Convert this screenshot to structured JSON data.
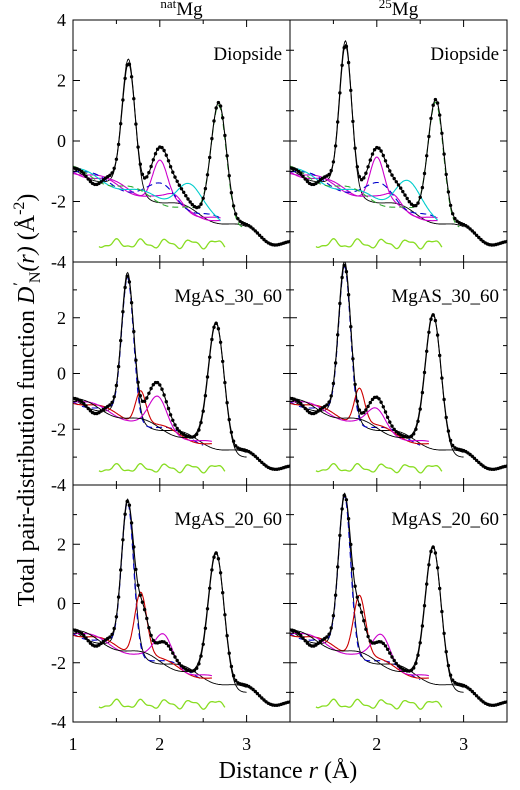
{
  "chart_data": {
    "type": "line",
    "ylabel": "Total pair-distribution function D′N(r) (Å⁻²)",
    "ylabel_main": "Total pair-distribution function ",
    "ylabel_D": "D",
    "ylabel_prime": "′",
    "ylabel_N": "N",
    "ylabel_r": "(r)",
    "ylabel_unit_open": " (Å",
    "ylabel_unit_exp": "-2",
    "ylabel_unit_close": ")",
    "xlabel": "Distance r (Å)",
    "xlabel_prefix": "Distance ",
    "xlabel_r": "r",
    "xlabel_unit": " (Å)",
    "xlim": [
      1,
      3.5
    ],
    "ylim": [
      -4,
      4
    ],
    "xticks": [
      1,
      2,
      3
    ],
    "yticks": [
      -4,
      -2,
      0,
      2,
      4
    ],
    "columns": [
      {
        "sup": "nat",
        "base": "Mg"
      },
      {
        "sup": "25",
        "base": "Mg"
      }
    ],
    "rows": [
      "Diopside",
      "MgAS_30_60",
      "MgAS_20_60"
    ],
    "panels": [
      {
        "col": 0,
        "row": 0,
        "label": "Diopside",
        "data_peaks": [
          {
            "c": 1.64,
            "a": 4.2,
            "s": 0.075
          },
          {
            "c": 2.0,
            "a": 1.6,
            "s": 0.1
          },
          {
            "c": 2.2,
            "a": 0.6,
            "s": 0.12
          },
          {
            "c": 2.68,
            "a": 3.9,
            "s": 0.09
          }
        ],
        "components": [
          {
            "color": "#000000",
            "dash": "",
            "c": 1.64,
            "a": 4.2,
            "s": 0.075,
            "to": 3.0
          },
          {
            "color": "#cc00cc",
            "dash": "",
            "c": 2.0,
            "a": 1.3,
            "s": 0.085,
            "to": 2.7
          },
          {
            "color": "#cc00cc",
            "dash": "",
            "c": 2.18,
            "a": 0.3,
            "s": 0.09,
            "to": 2.7
          },
          {
            "color": "#0000cc",
            "dash": "6,4",
            "c": 2.06,
            "a": 0.5,
            "s": 0.15,
            "to": 2.7
          },
          {
            "color": "#00cccc",
            "dash": "",
            "c": 2.32,
            "a": 0.9,
            "s": 0.14,
            "to": 2.7
          },
          {
            "color": "#33aa33",
            "dash": "6,4",
            "c": 2.68,
            "a": 3.9,
            "s": 0.09,
            "to": 2.95
          }
        ]
      },
      {
        "col": 1,
        "row": 0,
        "label": "Diopside",
        "data_peaks": [
          {
            "c": 1.64,
            "a": 4.8,
            "s": 0.07
          },
          {
            "c": 2.0,
            "a": 1.6,
            "s": 0.1
          },
          {
            "c": 2.22,
            "a": 0.7,
            "s": 0.12
          },
          {
            "c": 2.68,
            "a": 4.0,
            "s": 0.09
          }
        ],
        "components": [
          {
            "color": "#000000",
            "dash": "",
            "c": 1.64,
            "a": 4.8,
            "s": 0.07,
            "to": 3.0
          },
          {
            "color": "#cc00cc",
            "dash": "",
            "c": 2.0,
            "a": 1.4,
            "s": 0.08,
            "to": 2.7
          },
          {
            "color": "#cc00cc",
            "dash": "",
            "c": 2.2,
            "a": 0.35,
            "s": 0.09,
            "to": 2.7
          },
          {
            "color": "#0000cc",
            "dash": "6,4",
            "c": 2.08,
            "a": 0.55,
            "s": 0.15,
            "to": 2.7
          },
          {
            "color": "#00cccc",
            "dash": "",
            "c": 2.34,
            "a": 1.0,
            "s": 0.14,
            "to": 2.7
          },
          {
            "color": "#33aa33",
            "dash": "6,4",
            "c": 2.68,
            "a": 4.0,
            "s": 0.09,
            "to": 2.95
          }
        ]
      },
      {
        "col": 0,
        "row": 1,
        "label": "MgAS_30_60",
        "data_peaks": [
          {
            "c": 1.63,
            "a": 5.1,
            "s": 0.07
          },
          {
            "c": 1.97,
            "a": 1.6,
            "s": 0.11
          },
          {
            "c": 2.65,
            "a": 4.4,
            "s": 0.09
          }
        ],
        "components": [
          {
            "color": "#000000",
            "dash": "",
            "c": 1.63,
            "a": 5.1,
            "s": 0.07,
            "to": 3.0
          },
          {
            "color": "#0000cc",
            "dash": "6,4",
            "c": 1.63,
            "a": 5.0,
            "s": 0.068,
            "to": 2.5
          },
          {
            "color": "#cc0000",
            "dash": "",
            "c": 1.78,
            "a": 1.2,
            "s": 0.06,
            "to": 2.6
          },
          {
            "color": "#cc00cc",
            "dash": "",
            "c": 1.98,
            "a": 1.0,
            "s": 0.1,
            "to": 2.6
          },
          {
            "color": "#000000",
            "dash": "",
            "c": 2.65,
            "a": 4.4,
            "s": 0.09,
            "to": 3.0
          }
        ]
      },
      {
        "col": 1,
        "row": 1,
        "label": "MgAS_30_60",
        "data_peaks": [
          {
            "c": 1.63,
            "a": 5.5,
            "s": 0.07
          },
          {
            "c": 2.0,
            "a": 1.1,
            "s": 0.1
          },
          {
            "c": 2.65,
            "a": 4.7,
            "s": 0.09
          }
        ],
        "components": [
          {
            "color": "#000000",
            "dash": "",
            "c": 1.63,
            "a": 5.5,
            "s": 0.07,
            "to": 3.0
          },
          {
            "color": "#0000cc",
            "dash": "6,4",
            "c": 1.63,
            "a": 5.4,
            "s": 0.068,
            "to": 2.5
          },
          {
            "color": "#cc0000",
            "dash": "",
            "c": 1.8,
            "a": 1.3,
            "s": 0.06,
            "to": 2.6
          },
          {
            "color": "#cc00cc",
            "dash": "",
            "c": 2.0,
            "a": 0.6,
            "s": 0.1,
            "to": 2.6
          },
          {
            "color": "#000000",
            "dash": "",
            "c": 2.65,
            "a": 4.7,
            "s": 0.09,
            "to": 3.0
          }
        ]
      },
      {
        "col": 0,
        "row": 2,
        "label": "MgAS_20_60",
        "data_peaks": [
          {
            "c": 1.63,
            "a": 5.0,
            "s": 0.07
          },
          {
            "c": 1.8,
            "a": 1.5,
            "s": 0.07
          },
          {
            "c": 2.05,
            "a": 0.7,
            "s": 0.1
          },
          {
            "c": 2.65,
            "a": 4.3,
            "s": 0.09
          }
        ],
        "components": [
          {
            "color": "#000000",
            "dash": "",
            "c": 1.63,
            "a": 5.0,
            "s": 0.07,
            "to": 3.0
          },
          {
            "color": "#0000cc",
            "dash": "6,4",
            "c": 1.63,
            "a": 5.0,
            "s": 0.068,
            "to": 2.5
          },
          {
            "color": "#cc0000",
            "dash": "",
            "c": 1.78,
            "a": 2.2,
            "s": 0.07,
            "to": 2.6
          },
          {
            "color": "#cc00cc",
            "dash": "",
            "c": 2.05,
            "a": 0.9,
            "s": 0.1,
            "to": 2.6
          },
          {
            "color": "#000000",
            "dash": "",
            "c": 2.65,
            "a": 4.3,
            "s": 0.09,
            "to": 3.0
          }
        ]
      },
      {
        "col": 1,
        "row": 2,
        "label": "MgAS_20_60",
        "data_peaks": [
          {
            "c": 1.63,
            "a": 5.2,
            "s": 0.07
          },
          {
            "c": 1.8,
            "a": 1.4,
            "s": 0.07
          },
          {
            "c": 2.05,
            "a": 0.7,
            "s": 0.1
          },
          {
            "c": 2.65,
            "a": 4.5,
            "s": 0.09
          }
        ],
        "components": [
          {
            "color": "#000000",
            "dash": "",
            "c": 1.63,
            "a": 5.2,
            "s": 0.07,
            "to": 3.0
          },
          {
            "color": "#0000cc",
            "dash": "6,4",
            "c": 1.63,
            "a": 5.2,
            "s": 0.068,
            "to": 2.5
          },
          {
            "color": "#cc0000",
            "dash": "",
            "c": 1.8,
            "a": 2.1,
            "s": 0.07,
            "to": 2.6
          },
          {
            "color": "#cc00cc",
            "dash": "",
            "c": 2.06,
            "a": 0.9,
            "s": 0.1,
            "to": 2.6
          },
          {
            "color": "#000000",
            "dash": "",
            "c": 2.65,
            "a": 4.5,
            "s": 0.09,
            "to": 3.0
          }
        ]
      }
    ],
    "residual_color": "#88dd22",
    "grid": false,
    "legend": "none"
  }
}
